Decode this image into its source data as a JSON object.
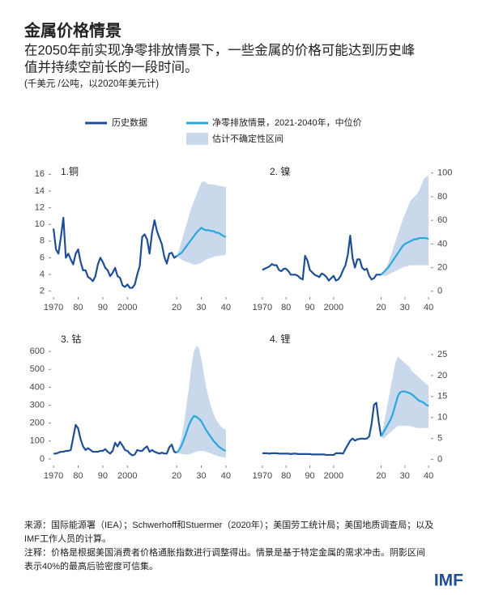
{
  "title": "金属价格情景",
  "subtitle": [
    "在2050年前实现净零排放情景下，一些金属的价格可能达到历史峰",
    "值并持续空前长的一段时间。"
  ],
  "units": "(千美元 /公吨，以2020年美元计)",
  "legend": [
    {
      "label": "历史数据",
      "color": "#1f4e96"
    },
    {
      "label": "净零排放情景，2021-2040年，中位价",
      "color": "#29a8e0"
    },
    {
      "label": "估计不确定性区间",
      "color": "#c9d8ea"
    }
  ],
  "source": [
    "来源：国际能源署（IEA）；Schwerhoff和Stuermer（2020年）；美国劳工统计局；美国地质调查局；以及",
    "IMF工作人员的计算。"
  ],
  "note": [
    "注释：价格是根据美国消费者价格通胀指数进行调整得出。情景是基于特定金属的需求冲击。阴影区间",
    "表示40%的最高后验密度可信集。"
  ],
  "logo": "IMF",
  "chart_data": [
    {
      "type": "line",
      "label": "1.铜",
      "y_axis": "left",
      "xlim": [
        1968,
        2042
      ],
      "xticks": [
        1970,
        {
          "value": 1980,
          "label": "80"
        },
        {
          "value": 1990,
          "label": "90"
        },
        2000,
        {
          "value": 2020,
          "label": "20"
        },
        {
          "value": 2030,
          "label": "30"
        },
        {
          "value": 2040,
          "label": "40"
        }
      ],
      "ylim": [
        1,
        17
      ],
      "yticks": [
        2,
        4,
        6,
        8,
        10,
        12,
        14,
        16
      ],
      "history": {
        "x": [
          1970,
          1971,
          1972,
          1973,
          1974,
          1975,
          1976,
          1977,
          1978,
          1979,
          1980,
          1981,
          1982,
          1983,
          1984,
          1985,
          1986,
          1987,
          1988,
          1989,
          1990,
          1991,
          1992,
          1993,
          1994,
          1995,
          1996,
          1997,
          1998,
          1999,
          2000,
          2001,
          2002,
          2003,
          2004,
          2005,
          2006,
          2007,
          2008,
          2009,
          2010,
          2011,
          2012,
          2013,
          2014,
          2015,
          2016,
          2017,
          2018,
          2019,
          2020
        ],
        "values": [
          9.5,
          7,
          6.5,
          8.5,
          10.8,
          6,
          6.5,
          5.8,
          5.2,
          6.5,
          7,
          5.5,
          4.5,
          4.5,
          3.7,
          3.5,
          3.2,
          3.8,
          5.2,
          6,
          5.5,
          4.8,
          4.5,
          3.8,
          4.2,
          4.8,
          3.8,
          3.6,
          2.7,
          2.5,
          2.8,
          2.4,
          2.4,
          2.8,
          4,
          5,
          8.5,
          8.8,
          8.2,
          6.5,
          9,
          10.5,
          9.2,
          8.4,
          7.6,
          6.1,
          5.3,
          6.5,
          6.6,
          6,
          6.2
        ]
      },
      "forecast": {
        "x": [
          2020,
          2021,
          2022,
          2023,
          2024,
          2025,
          2026,
          2027,
          2028,
          2029,
          2030,
          2031,
          2032,
          2033,
          2034,
          2035,
          2036,
          2037,
          2038,
          2039,
          2040
        ],
        "values": [
          6.2,
          6.4,
          6.6,
          7,
          7.4,
          7.8,
          8.2,
          8.6,
          9,
          9.3,
          9.6,
          9.4,
          9.3,
          9.3,
          9.2,
          9.2,
          9,
          9,
          8.8,
          8.6,
          8.5
        ],
        "low": [
          6.2,
          6,
          5.8,
          5.6,
          5.5,
          5.4,
          5.3,
          5.2,
          5.2,
          5.3,
          5.4,
          5.6,
          5.8,
          5.9,
          6,
          6.1,
          6.2,
          6.2,
          6.3,
          6.3,
          6.4
        ],
        "high": [
          6.2,
          7,
          8,
          9,
          10,
          11,
          12,
          12.8,
          13.5,
          14.3,
          15,
          15.2,
          15,
          14.8,
          14.8,
          14.8,
          14.7,
          14.6,
          14.6,
          14.5,
          14.5
        ]
      }
    },
    {
      "type": "line",
      "label": "2. 镍",
      "y_axis": "right",
      "xlim": [
        1968,
        2042
      ],
      "xticks": [
        1970,
        {
          "value": 1980,
          "label": "80"
        },
        {
          "value": 1990,
          "label": "90"
        },
        2000,
        {
          "value": 2020,
          "label": "20"
        },
        {
          "value": 2030,
          "label": "30"
        },
        {
          "value": 2040,
          "label": "40"
        }
      ],
      "ylim": [
        -7,
        106
      ],
      "yticks": [
        0,
        20,
        40,
        60,
        80,
        100
      ],
      "history": {
        "x": [
          1970,
          1971,
          1972,
          1973,
          1974,
          1975,
          1976,
          1977,
          1978,
          1979,
          1980,
          1981,
          1982,
          1983,
          1984,
          1985,
          1986,
          1987,
          1988,
          1989,
          1990,
          1991,
          1992,
          1993,
          1994,
          1995,
          1996,
          1997,
          1998,
          1999,
          2000,
          2001,
          2002,
          2003,
          2004,
          2005,
          2006,
          2007,
          2008,
          2009,
          2010,
          2011,
          2012,
          2013,
          2014,
          2015,
          2016,
          2017,
          2018,
          2019,
          2020
        ],
        "values": [
          18,
          19,
          20,
          21,
          23,
          22,
          22,
          18,
          17,
          19,
          19,
          17,
          14,
          14,
          14,
          13,
          11,
          10,
          30,
          26,
          18,
          16,
          14,
          13,
          12,
          15,
          14,
          12,
          9,
          11,
          13,
          9,
          10,
          13,
          18,
          22,
          31,
          47,
          28,
          20,
          27,
          27,
          20,
          18,
          19,
          13,
          10,
          11,
          14,
          14,
          14
        ]
      },
      "forecast": {
        "x": [
          2020,
          2021,
          2022,
          2023,
          2024,
          2025,
          2026,
          2027,
          2028,
          2029,
          2030,
          2031,
          2032,
          2033,
          2034,
          2035,
          2036,
          2037,
          2038,
          2039,
          2040
        ],
        "values": [
          14,
          16,
          18,
          20,
          23,
          26,
          29,
          32,
          35,
          38,
          40,
          41,
          42,
          43,
          44,
          44,
          45,
          45,
          45,
          45,
          44
        ],
        "low": [
          14,
          13,
          13,
          14,
          15,
          16,
          17,
          18,
          19,
          20,
          21,
          21,
          22,
          22,
          22,
          22,
          22,
          22,
          22,
          22,
          22
        ],
        "high": [
          14,
          17,
          20,
          24,
          30,
          36,
          42,
          48,
          54,
          60,
          65,
          70,
          75,
          78,
          80,
          82,
          85,
          90,
          95,
          97,
          98
        ]
      }
    },
    {
      "type": "line",
      "label": "3. 钴",
      "y_axis": "left",
      "xlim": [
        1968,
        2042
      ],
      "xticks": [
        1970,
        {
          "value": 1980,
          "label": "80"
        },
        {
          "value": 1990,
          "label": "90"
        },
        2000,
        {
          "value": 2020,
          "label": "20"
        },
        {
          "value": 2030,
          "label": "30"
        },
        {
          "value": 2040,
          "label": "40"
        }
      ],
      "ylim": [
        -50,
        700
      ],
      "yticks": [
        0,
        100,
        200,
        300,
        400,
        500,
        600
      ],
      "history": {
        "x": [
          1970,
          1971,
          1972,
          1973,
          1974,
          1975,
          1976,
          1977,
          1978,
          1979,
          1980,
          1981,
          1982,
          1983,
          1984,
          1985,
          1986,
          1987,
          1988,
          1989,
          1990,
          1991,
          1992,
          1993,
          1994,
          1995,
          1996,
          1997,
          1998,
          1999,
          2000,
          2001,
          2002,
          2003,
          2004,
          2005,
          2006,
          2007,
          2008,
          2009,
          2010,
          2011,
          2012,
          2013,
          2014,
          2015,
          2016,
          2017,
          2018,
          2019,
          2020
        ],
        "values": [
          30,
          30,
          35,
          40,
          40,
          45,
          45,
          50,
          120,
          190,
          170,
          110,
          70,
          50,
          60,
          50,
          40,
          40,
          40,
          45,
          45,
          55,
          40,
          30,
          45,
          90,
          70,
          95,
          75,
          50,
          45,
          30,
          20,
          25,
          50,
          45,
          45,
          60,
          70,
          40,
          50,
          40,
          35,
          30,
          35,
          30,
          30,
          65,
          80,
          40,
          35
        ]
      },
      "forecast": {
        "x": [
          2020,
          2021,
          2022,
          2023,
          2024,
          2025,
          2026,
          2027,
          2028,
          2029,
          2030,
          2031,
          2032,
          2033,
          2034,
          2035,
          2036,
          2037,
          2038,
          2039,
          2040
        ],
        "values": [
          35,
          50,
          75,
          110,
          150,
          190,
          220,
          240,
          235,
          225,
          210,
          185,
          160,
          140,
          120,
          100,
          85,
          70,
          60,
          50,
          45
        ],
        "low": [
          35,
          30,
          28,
          26,
          25,
          25,
          30,
          35,
          40,
          45,
          45,
          45,
          40,
          35,
          30,
          25,
          20,
          15,
          12,
          10,
          8
        ],
        "high": [
          35,
          70,
          120,
          200,
          300,
          400,
          520,
          600,
          630,
          620,
          560,
          480,
          400,
          340,
          290,
          250,
          220,
          200,
          180,
          170,
          160
        ]
      }
    },
    {
      "type": "line",
      "label": "4. 锂",
      "y_axis": "right",
      "xlim": [
        1968,
        2042
      ],
      "xticks": [
        1970,
        {
          "value": 1980,
          "label": "80"
        },
        {
          "value": 1990,
          "label": "90"
        },
        2000,
        {
          "value": 2020,
          "label": "20"
        },
        {
          "value": 2030,
          "label": "30"
        },
        {
          "value": 2040,
          "label": "40"
        }
      ],
      "ylim": [
        -2,
        30
      ],
      "yticks": [
        0,
        5,
        10,
        15,
        20,
        25
      ],
      "history": {
        "x": [
          1970,
          1971,
          1972,
          1973,
          1974,
          1975,
          1976,
          1977,
          1978,
          1979,
          1980,
          1981,
          1982,
          1983,
          1984,
          1985,
          1986,
          1987,
          1988,
          1989,
          1990,
          1991,
          1992,
          1993,
          1994,
          1995,
          1996,
          1997,
          1998,
          1999,
          2000,
          2001,
          2002,
          2003,
          2004,
          2005,
          2006,
          2007,
          2008,
          2009,
          2010,
          2011,
          2012,
          2013,
          2014,
          2015,
          2016,
          2017,
          2018,
          2019,
          2020
        ],
        "values": [
          1.5,
          1.5,
          1.5,
          1.4,
          1.5,
          1.5,
          1.5,
          1.4,
          1.4,
          1.4,
          1.4,
          1.4,
          1.3,
          1.4,
          1.4,
          1.3,
          1.3,
          1.3,
          1.3,
          1.3,
          1.3,
          1.2,
          1.2,
          1.2,
          1.2,
          1.2,
          1.2,
          1.1,
          1.1,
          1.1,
          1.1,
          1.5,
          1.5,
          1.5,
          1.4,
          2.5,
          3.5,
          4.5,
          5,
          4.5,
          4.8,
          4.9,
          5,
          4.9,
          5,
          5.5,
          8.5,
          13,
          13.5,
          9,
          5.5
        ]
      },
      "forecast": {
        "x": [
          2020,
          2021,
          2022,
          2023,
          2024,
          2025,
          2026,
          2027,
          2028,
          2029,
          2030,
          2031,
          2032,
          2033,
          2034,
          2035,
          2036,
          2037,
          2038,
          2039,
          2040
        ],
        "values": [
          5.5,
          6.5,
          7.5,
          8.5,
          9.5,
          11,
          13,
          15,
          16,
          16.2,
          16.2,
          16,
          15.8,
          15.5,
          15,
          14.5,
          14,
          13.8,
          13.5,
          13,
          12.8
        ],
        "low": [
          5.5,
          5,
          5.5,
          6,
          6.5,
          7,
          7.5,
          8,
          8,
          8,
          8,
          8,
          8,
          7.8,
          7.7,
          7.5,
          7.5,
          7.5,
          7.5,
          7.5,
          7.5
        ],
        "high": [
          5.5,
          8,
          11,
          14,
          17,
          20,
          23,
          24.5,
          24,
          23.5,
          23,
          22.5,
          22,
          21,
          20.5,
          20,
          19.5,
          19,
          18.5,
          18,
          17.5
        ]
      }
    }
  ]
}
